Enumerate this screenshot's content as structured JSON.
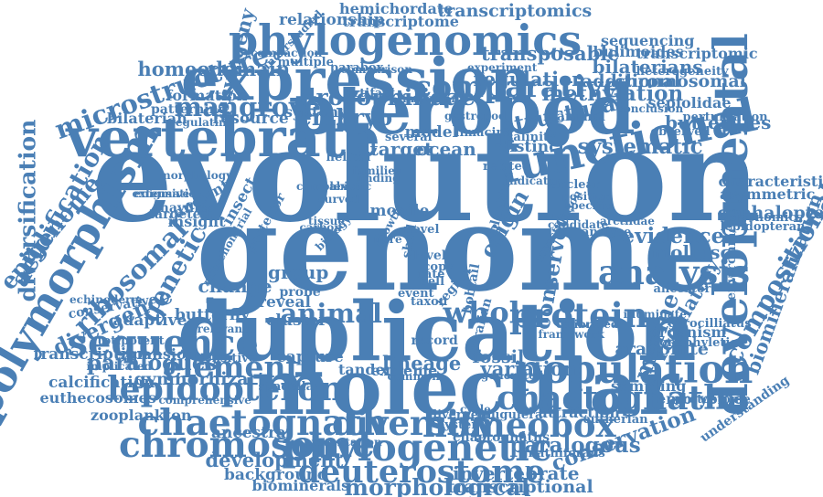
{
  "cloud": {
    "color": "#4a7fb5",
    "words": [
      {
        "text": "evolution",
        "weight": 1.0
      },
      {
        "text": "genome",
        "weight": 0.92
      },
      {
        "text": "duplication",
        "weight": 0.62
      },
      {
        "text": "molecular",
        "weight": 0.58
      },
      {
        "text": "pteropod",
        "weight": 0.52
      },
      {
        "text": "expression",
        "weight": 0.44
      },
      {
        "text": "vertebrate",
        "weight": 0.4
      },
      {
        "text": "developmental",
        "weight": 0.34
      },
      {
        "text": "functional",
        "weight": 0.33
      },
      {
        "text": "polymorphism",
        "weight": 0.3
      },
      {
        "text": "phylogenomics",
        "weight": 0.3
      },
      {
        "text": "population",
        "weight": 0.28
      },
      {
        "text": "phylogenetic",
        "weight": 0.27
      },
      {
        "text": "sequence",
        "weight": 0.26
      },
      {
        "text": "chromosome",
        "weight": 0.25
      },
      {
        "text": "chaetognath",
        "weight": 0.25
      },
      {
        "text": "diversity",
        "weight": 0.24
      },
      {
        "text": "homeobox",
        "weight": 0.24
      },
      {
        "text": "protein",
        "weight": 0.24
      },
      {
        "text": "analysis",
        "weight": 0.24
      },
      {
        "text": "lepidopteron",
        "weight": 0.23
      },
      {
        "text": "chaetognatha",
        "weight": 0.23
      },
      {
        "text": "deuterostome",
        "weight": 0.22
      },
      {
        "text": "comparative",
        "weight": 0.21
      },
      {
        "text": "element",
        "weight": 0.21
      },
      {
        "text": "whole",
        "weight": 0.2
      },
      {
        "text": "animal",
        "weight": 0.18
      },
      {
        "text": "mangrove",
        "weight": 0.18
      },
      {
        "text": "microstructure",
        "weight": 0.18
      },
      {
        "text": "ribosomal",
        "weight": 0.18
      },
      {
        "text": "compositional",
        "weight": 0.17
      },
      {
        "text": "genetic",
        "weight": 0.17
      },
      {
        "text": "acidification",
        "weight": 0.16
      },
      {
        "text": "diversification",
        "weight": 0.15
      },
      {
        "text": "epigenome",
        "weight": 0.15
      },
      {
        "text": "marine",
        "weight": 0.15
      },
      {
        "text": "morphological",
        "weight": 0.15
      },
      {
        "text": "drosophilidae",
        "weight": 0.15
      },
      {
        "text": "embryo",
        "weight": 0.15
      },
      {
        "text": "structural",
        "weight": 0.14
      },
      {
        "text": "origin",
        "weight": 0.14
      },
      {
        "text": "conserved",
        "weight": 0.13
      },
      {
        "text": "paralogous",
        "weight": 0.13
      },
      {
        "text": "conservation",
        "weight": 0.13
      },
      {
        "text": "systematic",
        "weight": 0.13
      },
      {
        "text": "methylation",
        "weight": 0.13
      },
      {
        "text": "evidence",
        "weight": 0.13
      },
      {
        "text": "divergence",
        "weight": 0.13
      },
      {
        "text": "paralogues",
        "weight": 0.13
      },
      {
        "text": "biomineralization",
        "weight": 0.12
      },
      {
        "text": "regulatory",
        "weight": 0.12
      },
      {
        "text": "lineage",
        "weight": 0.12
      },
      {
        "text": "phylogeny",
        "weight": 0.12
      },
      {
        "text": "development",
        "weight": 0.12
      },
      {
        "text": "homeodomain",
        "weight": 0.12
      },
      {
        "text": "variation",
        "weight": 0.12
      },
      {
        "text": "transposable",
        "weight": 0.12
      },
      {
        "text": "regulation",
        "weight": 0.12
      },
      {
        "text": "target",
        "weight": 0.11
      },
      {
        "text": "ocean",
        "weight": 0.11
      },
      {
        "text": "mollusc",
        "weight": 0.11
      },
      {
        "text": "change",
        "weight": 0.11
      },
      {
        "text": "group",
        "weight": 0.11
      },
      {
        "text": "invertebrate",
        "weight": 0.11
      },
      {
        "text": "bilaterians",
        "weight": 0.11
      },
      {
        "text": "butterflies",
        "weight": 0.11
      },
      {
        "text": "cephaloptera",
        "weight": 0.1
      },
      {
        "text": "aragonite",
        "weight": 0.1
      },
      {
        "text": "gymnorhiza",
        "weight": 0.1
      },
      {
        "text": "fossil",
        "weight": 0.1
      },
      {
        "text": "transcriptional",
        "weight": 0.1
      },
      {
        "text": "transcriptomics",
        "weight": 0.1
      },
      {
        "text": "chromosomal",
        "weight": 0.1
      },
      {
        "text": "additional",
        "weight": 0.1
      },
      {
        "text": "relationship",
        "weight": 0.09
      },
      {
        "text": "transcription",
        "weight": 0.09
      },
      {
        "text": "background",
        "weight": 0.09
      },
      {
        "text": "calcification",
        "weight": 0.09
      },
      {
        "text": "ancestral",
        "weight": 0.09
      },
      {
        "text": "adaptive",
        "weight": 0.09
      },
      {
        "text": "resource",
        "weight": 0.09
      },
      {
        "text": "cluster",
        "weight": 0.09
      },
      {
        "text": "capture",
        "weight": 0.09
      },
      {
        "text": "insect",
        "weight": 0.09
      },
      {
        "text": "reveal",
        "weight": 0.09
      },
      {
        "text": "butterfly",
        "weight": 0.09
      },
      {
        "text": "mobile",
        "weight": 0.09
      },
      {
        "text": "model",
        "weight": 0.09
      },
      {
        "text": "distinct",
        "weight": 0.09
      },
      {
        "text": "characteristic",
        "weight": 0.08
      },
      {
        "text": "asymmetric",
        "weight": 0.08
      },
      {
        "text": "sampling",
        "weight": 0.08
      },
      {
        "text": "embryonic",
        "weight": 0.08
      },
      {
        "text": "organism",
        "weight": 0.08
      },
      {
        "text": "synteny",
        "weight": 0.08
      },
      {
        "text": "hemichordate",
        "weight": 0.08
      },
      {
        "text": "transcriptome",
        "weight": 0.08
      },
      {
        "text": "sequencing",
        "weight": 0.08
      },
      {
        "text": "bulimoides",
        "weight": 0.08
      },
      {
        "text": "transcriptomic",
        "weight": 0.08
      },
      {
        "text": "formation",
        "weight": 0.08
      },
      {
        "text": "bilaterian",
        "weight": 0.08
      },
      {
        "text": "zooplankton",
        "weight": 0.08
      },
      {
        "text": "euthecosomes",
        "weight": 0.08
      },
      {
        "text": "biominerals",
        "weight": 0.08
      },
      {
        "text": "tandem",
        "weight": 0.08
      },
      {
        "text": "extreme",
        "weight": 0.08
      },
      {
        "text": "attraction",
        "weight": 0.08
      },
      {
        "text": "chaetognaths",
        "weight": 0.07
      },
      {
        "text": "sepiolidae",
        "weight": 0.08
      },
      {
        "text": "insight",
        "weight": 0.08
      },
      {
        "text": "ancient",
        "weight": 0.08
      },
      {
        "text": "expansion",
        "weight": 0.08
      },
      {
        "text": "mayflies",
        "weight": 0.07
      },
      {
        "text": "targeted",
        "weight": 0.07
      },
      {
        "text": "posterior",
        "weight": 0.07
      },
      {
        "text": "environment",
        "weight": 0.07
      },
      {
        "text": "record",
        "weight": 0.07
      },
      {
        "text": "spiralian",
        "weight": 0.07
      },
      {
        "text": "understanding",
        "weight": 0.07
      },
      {
        "text": "level",
        "weight": 0.07
      },
      {
        "text": "bobtail",
        "weight": 0.07
      },
      {
        "text": "region",
        "weight": 0.07
      },
      {
        "text": "shell",
        "weight": 0.07
      },
      {
        "text": "probe",
        "weight": 0.07
      },
      {
        "text": "plankton",
        "weight": 0.07
      },
      {
        "text": "conservative",
        "weight": 0.07
      },
      {
        "text": "patterning",
        "weight": 0.07
      },
      {
        "text": "mammal",
        "weight": 0.07
      },
      {
        "text": "perturbation",
        "weight": 0.06
      },
      {
        "text": "observed",
        "weight": 0.06
      },
      {
        "text": "several",
        "weight": 0.06
      },
      {
        "text": "helical",
        "weight": 0.06
      },
      {
        "text": "salinity",
        "weight": 0.06
      },
      {
        "text": "limacina",
        "weight": 0.06
      },
      {
        "text": "related",
        "weight": 0.06
      },
      {
        "text": "unclear",
        "weight": 0.06
      },
      {
        "text": "analyse",
        "weight": 0.06
      },
      {
        "text": "ancestor",
        "weight": 0.06
      },
      {
        "text": "protostome",
        "weight": 0.06
      },
      {
        "text": "eutherian",
        "weight": 0.06
      },
      {
        "text": "multiple",
        "weight": 0.06
      },
      {
        "text": "heterogeneity",
        "weight": 0.06
      },
      {
        "text": "lepidopteran",
        "weight": 0.06
      },
      {
        "text": "epigenomics",
        "weight": 0.06
      },
      {
        "text": "gyrocilliatus",
        "weight": 0.06
      },
      {
        "text": "monophyletic",
        "weight": 0.06
      },
      {
        "text": "divergent",
        "weight": 0.06
      },
      {
        "text": "bruguiera",
        "weight": 0.06
      },
      {
        "text": "oyster",
        "weight": 0.06
      },
      {
        "text": "gnathiferans",
        "weight": 0.06
      },
      {
        "text": "spadella",
        "weight": 0.06
      },
      {
        "text": "parabox",
        "weight": 0.06
      },
      {
        "text": "artifact",
        "weight": 0.06
      },
      {
        "text": "conclusion",
        "weight": 0.05
      },
      {
        "text": "experiment",
        "weight": 0.05
      },
      {
        "text": "comparison",
        "weight": 0.05
      },
      {
        "text": "regulating",
        "weight": 0.05
      },
      {
        "text": "important",
        "weight": 0.05
      },
      {
        "text": "gastropod",
        "weight": 0.05
      },
      {
        "text": "taxon",
        "weight": 0.06
      },
      {
        "text": "event",
        "weight": 0.06
      },
      {
        "text": "copy",
        "weight": 0.06
      },
      {
        "text": "cell",
        "weight": 0.06
      },
      {
        "text": "rate",
        "weight": 0.06
      },
      {
        "text": "novel",
        "weight": 0.06
      },
      {
        "text": "sensitive",
        "weight": 0.06
      },
      {
        "text": "totipotent",
        "weight": 0.06
      },
      {
        "text": "compaction",
        "weight": 0.05
      },
      {
        "text": "understudied",
        "weight": 0.05
      },
      {
        "text": "echinoderm",
        "weight": 0.05
      },
      {
        "text": "abiotic",
        "weight": 0.05
      },
      {
        "text": "families",
        "weight": 0.05
      },
      {
        "text": "finding",
        "weight": 0.05
      },
      {
        "text": "position",
        "weight": 0.05
      },
      {
        "text": "specific",
        "weight": 0.05
      },
      {
        "text": "investigation",
        "weight": 0.05
      },
      {
        "text": "candidate",
        "weight": 0.05
      },
      {
        "text": "arctiidae",
        "weight": 0.05
      },
      {
        "text": "illuminate",
        "weight": 0.05
      },
      {
        "text": "calibrated",
        "weight": 0.05
      },
      {
        "text": "framework",
        "weight": 0.05
      },
      {
        "text": "common",
        "weight": 0.05
      },
      {
        "text": "generated",
        "weight": 0.05
      },
      {
        "text": "relevance",
        "weight": 0.05
      },
      {
        "text": "implicated",
        "weight": 0.05
      },
      {
        "text": "comprehensive",
        "weight": 0.05
      },
      {
        "text": "representation",
        "weight": 0.05
      },
      {
        "text": "mitochondrial",
        "weight": 0.05
      },
      {
        "text": "morphology",
        "weight": 0.05
      },
      {
        "text": "enigmatic",
        "weight": 0.05
      },
      {
        "text": "extensive",
        "weight": 0.05
      },
      {
        "text": "tissue",
        "weight": 0.05
      },
      {
        "text": "carbon",
        "weight": 0.05
      },
      {
        "text": "biology",
        "weight": 0.05
      },
      {
        "text": "fibre",
        "weight": 0.05
      },
      {
        "text": "growth",
        "weight": 0.05
      },
      {
        "text": "indicator",
        "weight": 0.05
      },
      {
        "text": "cycle",
        "weight": 0.05
      },
      {
        "text": "curved",
        "weight": 0.05
      },
      {
        "text": "complex",
        "weight": 0.05
      }
    ]
  }
}
